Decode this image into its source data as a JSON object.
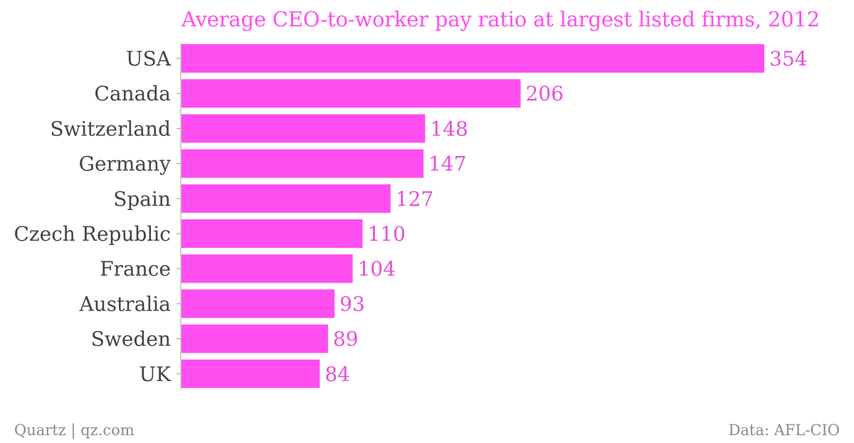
{
  "chart_data": {
    "type": "bar",
    "orientation": "horizontal",
    "title": "Average CEO-to-worker pay ratio at largest listed firms, 2012",
    "categories": [
      "USA",
      "Canada",
      "Switzerland",
      "Germany",
      "Spain",
      "Czech Republic",
      "France",
      "Australia",
      "Sweden",
      "UK"
    ],
    "values": [
      354,
      206,
      148,
      147,
      127,
      110,
      104,
      93,
      89,
      84
    ],
    "xlabel": "",
    "ylabel": "",
    "xlim": [
      0,
      354
    ],
    "grid": false,
    "legend": "none",
    "data_labels": true
  },
  "footer": {
    "source_left": "Quartz | qz.com",
    "source_right": "Data: AFL-CIO"
  },
  "colors": {
    "bar": "#ff4ef0",
    "title": "#ff4ef0",
    "value_label": "#e84fd8",
    "category_label": "#444444",
    "axis_line": "#9a9a9a",
    "footer_text": "#8a8a8a"
  }
}
